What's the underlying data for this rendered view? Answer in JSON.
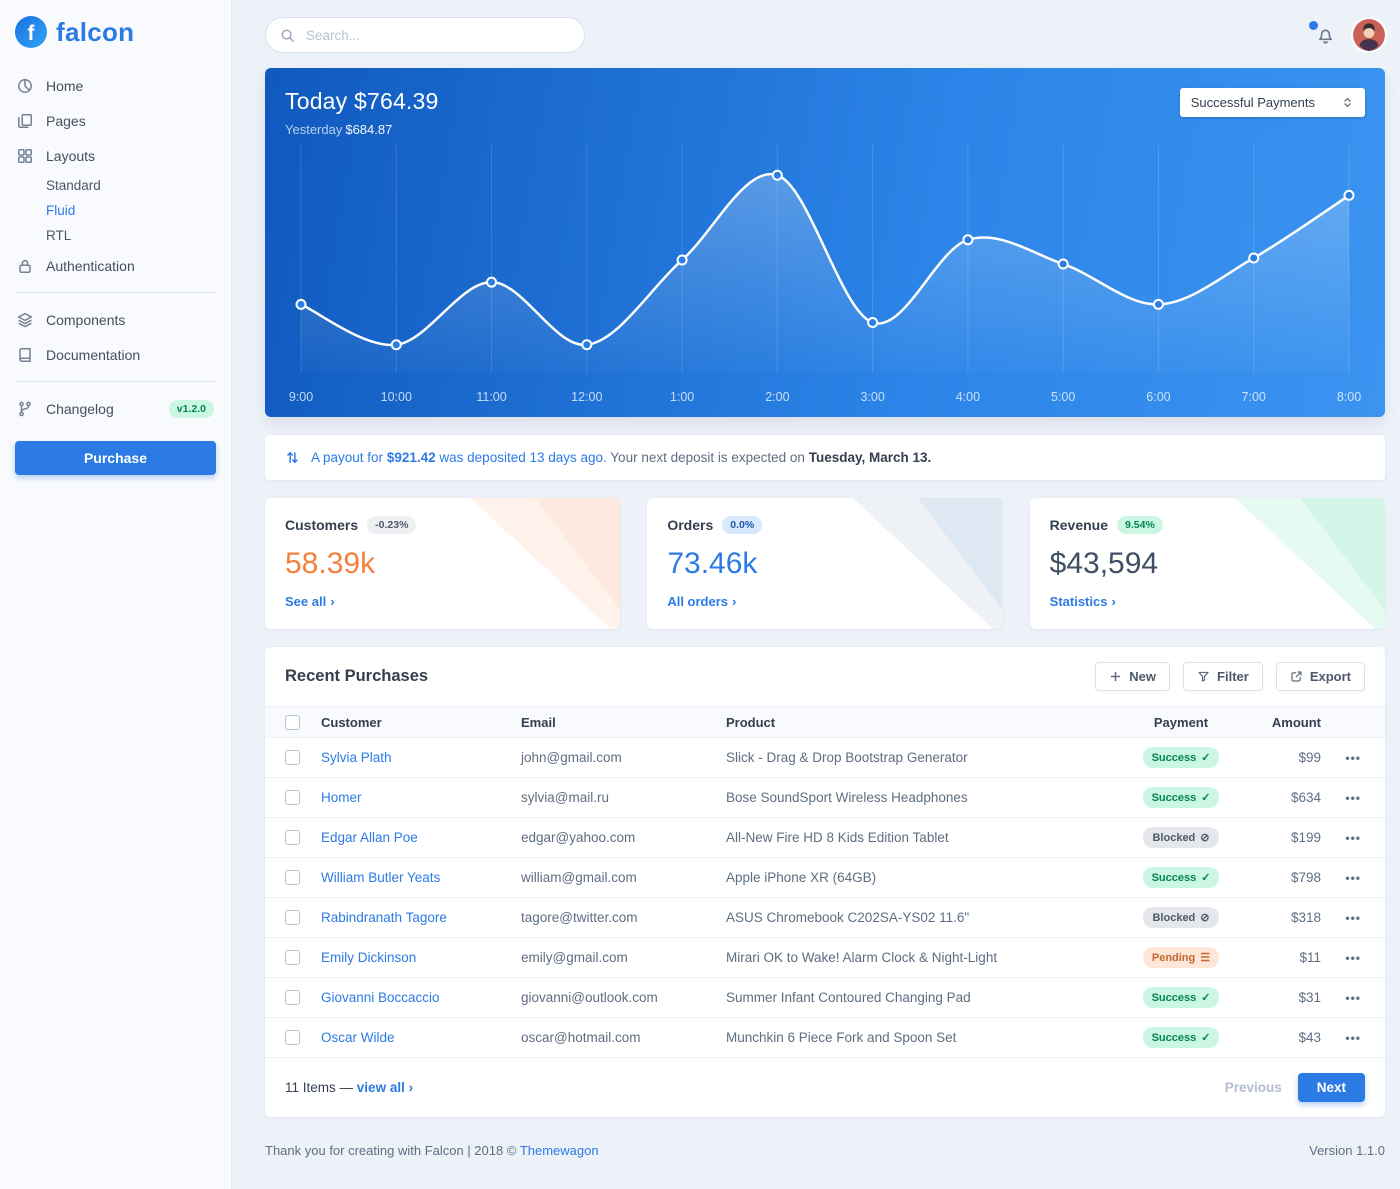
{
  "brand": {
    "name": "falcon",
    "initial": "f"
  },
  "sidebar": {
    "nav": [
      {
        "label": "Home"
      },
      {
        "label": "Pages"
      },
      {
        "label": "Layouts"
      },
      {
        "label": "Authentication"
      },
      {
        "label": "Components"
      },
      {
        "label": "Documentation"
      },
      {
        "label": "Changelog",
        "badge": "v1.2.0"
      }
    ],
    "layouts_children": [
      {
        "label": "Standard"
      },
      {
        "label": "Fluid"
      },
      {
        "label": "RTL"
      }
    ],
    "purchase_label": "Purchase"
  },
  "topbar": {
    "search_placeholder": "Search..."
  },
  "hero": {
    "title": "Today $764.39",
    "yesterday_label": "Yesterday",
    "yesterday_value": "$684.87",
    "select_value": "Successful Payments"
  },
  "chart_data": {
    "type": "line",
    "title": "Successful Payments by hour",
    "x": [
      "9:00",
      "10:00",
      "11:00",
      "12:00",
      "1:00",
      "2:00",
      "3:00",
      "4:00",
      "5:00",
      "6:00",
      "7:00",
      "8:00"
    ],
    "series": [
      {
        "name": "Successful Payments",
        "values": [
          34,
          14,
          45,
          14,
          56,
          98,
          25,
          66,
          54,
          34,
          57,
          88
        ]
      }
    ],
    "ylim": [
      0,
      110
    ],
    "grid": "vertical",
    "line_color": "#ffffff",
    "legend": "none"
  },
  "payout": {
    "link_text": "A payout for",
    "amount": "$921.42",
    "link_text2": "was deposited 13 days ago.",
    "rest": "Your next deposit is expected on",
    "date": "Tuesday, March 13."
  },
  "stats": [
    {
      "title": "Customers",
      "badge": "-0.23%",
      "value": "58.39k",
      "link": "See all"
    },
    {
      "title": "Orders",
      "badge": "0.0%",
      "value": "73.46k",
      "link": "All orders"
    },
    {
      "title": "Revenue",
      "badge": "9.54%",
      "value": "$43,594",
      "link": "Statistics"
    }
  ],
  "purchases": {
    "title": "Recent Purchases",
    "actions": [
      {
        "label": "New"
      },
      {
        "label": "Filter"
      },
      {
        "label": "Export"
      }
    ],
    "columns": [
      "Customer",
      "Email",
      "Product",
      "Payment",
      "Amount"
    ],
    "rows": [
      {
        "customer": "Sylvia Plath",
        "email": "john@gmail.com",
        "product": "Slick - Drag & Drop Bootstrap Generator",
        "payment": "Success",
        "status": "success",
        "amount": "$99"
      },
      {
        "customer": "Homer",
        "email": "sylvia@mail.ru",
        "product": "Bose SoundSport Wireless Headphones",
        "payment": "Success",
        "status": "success",
        "amount": "$634"
      },
      {
        "customer": "Edgar Allan Poe",
        "email": "edgar@yahoo.com",
        "product": "All-New Fire HD 8 Kids Edition Tablet",
        "payment": "Blocked",
        "status": "blocked",
        "amount": "$199"
      },
      {
        "customer": "William Butler Yeats",
        "email": "william@gmail.com",
        "product": "Apple iPhone XR (64GB)",
        "payment": "Success",
        "status": "success",
        "amount": "$798"
      },
      {
        "customer": "Rabindranath Tagore",
        "email": "tagore@twitter.com",
        "product": "ASUS Chromebook C202SA-YS02 11.6\"",
        "payment": "Blocked",
        "status": "blocked",
        "amount": "$318"
      },
      {
        "customer": "Emily Dickinson",
        "email": "emily@gmail.com",
        "product": "Mirari OK to Wake! Alarm Clock & Night-Light",
        "payment": "Pending",
        "status": "pending",
        "amount": "$11"
      },
      {
        "customer": "Giovanni Boccaccio",
        "email": "giovanni@outlook.com",
        "product": "Summer Infant Contoured Changing Pad",
        "payment": "Success",
        "status": "success",
        "amount": "$31"
      },
      {
        "customer": "Oscar Wilde",
        "email": "oscar@hotmail.com",
        "product": "Munchkin 6 Piece Fork and Spoon Set",
        "payment": "Success",
        "status": "success",
        "amount": "$43"
      }
    ],
    "footer": {
      "count": "11 Items —",
      "view_all": "view all",
      "previous": "Previous",
      "next": "Next"
    }
  },
  "footer": {
    "text": "Thank you for creating with Falcon | 2018 ©",
    "link": "Themewagon",
    "version": "Version 1.1.0"
  },
  "icons": {
    "success": "✓",
    "blocked": "⊘",
    "pending": "☰",
    "ellipsis": "•••",
    "chevron": "›"
  },
  "colors": {
    "primary": "#2c7be5",
    "success_badge": "#ccf6e4",
    "warning_value": "#f5803e"
  }
}
